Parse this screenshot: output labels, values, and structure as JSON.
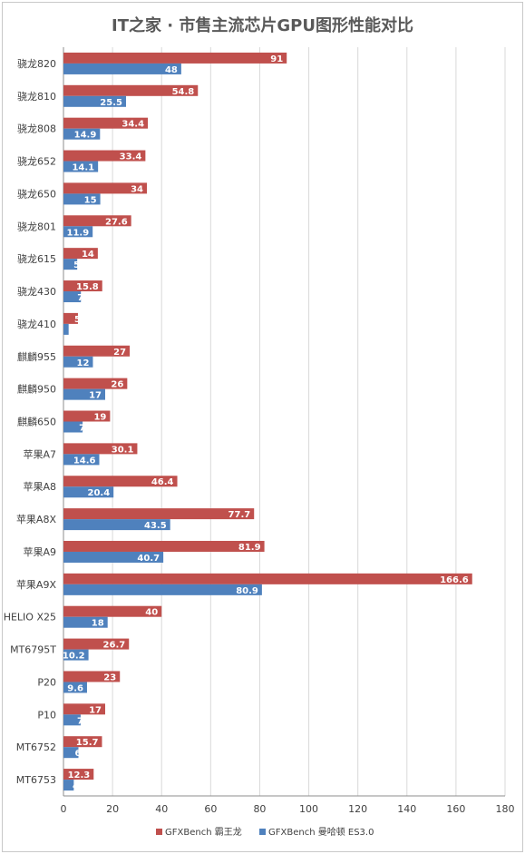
{
  "chart_data": {
    "type": "bar",
    "orientation": "horizontal",
    "title": "IT之家 · 市售主流芯片GPU图形性能对比",
    "categories": [
      "骁龙820",
      "骁龙810",
      "骁龙808",
      "骁龙652",
      "骁龙650",
      "骁龙801",
      "骁龙615",
      "骁龙430",
      "骁龙410",
      "麒麟955",
      "麒麟950",
      "麒麟650",
      "苹果A7",
      "苹果A8",
      "苹果A8X",
      "苹果A9",
      "苹果A9X",
      "HELIO X25",
      "MT6795T",
      "P20",
      "P10",
      "MT6752",
      "MT6753"
    ],
    "series": [
      {
        "name": "GFXBench 霸王龙",
        "color": "#c0504d",
        "values": [
          91,
          54.8,
          34.4,
          33.4,
          34,
          27.6,
          14,
          15.8,
          5.9,
          27,
          26,
          19,
          30.1,
          46.4,
          77.7,
          81.9,
          166.6,
          40,
          26.7,
          23,
          17,
          15.7,
          12.3
        ]
      },
      {
        "name": "GFXBench 曼哈顿 ES3.0",
        "color": "#4f81bd",
        "values": [
          48,
          25.5,
          14.9,
          14.1,
          15,
          11.9,
          5.6,
          7.1,
          2.1,
          12,
          17,
          7.8,
          14.6,
          20.4,
          43.5,
          40.7,
          80.9,
          18,
          10.2,
          9.6,
          7,
          6.1,
          4.2
        ]
      }
    ],
    "xlim": [
      0,
      180
    ],
    "xticks": [
      0,
      20,
      40,
      60,
      80,
      100,
      120,
      140,
      160,
      180
    ],
    "grid": true,
    "legend_position": "bottom"
  }
}
